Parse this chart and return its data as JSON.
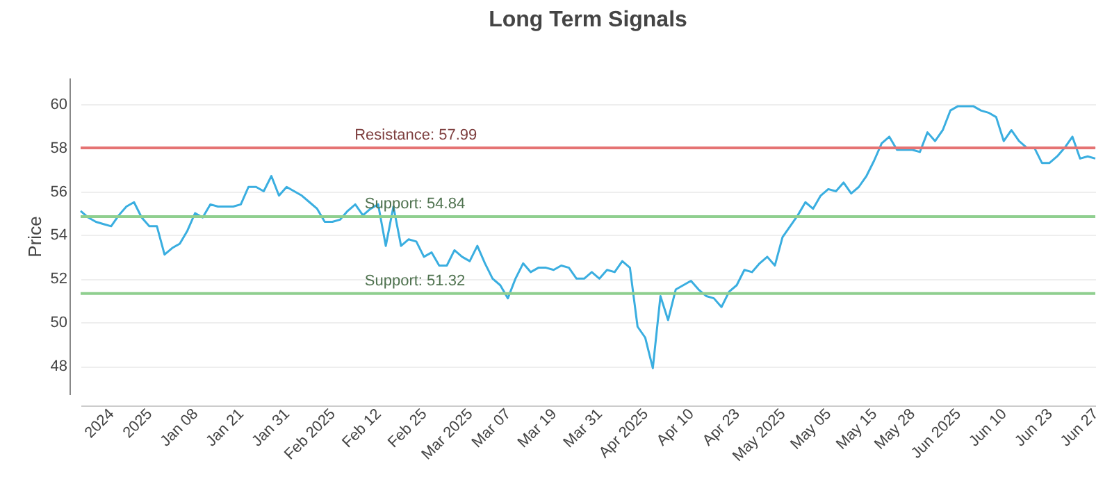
{
  "chart_data": {
    "type": "line",
    "title": "Long Term Signals",
    "ylabel": "Price",
    "categories": [
      null,
      null,
      null,
      null,
      "2024",
      null,
      null,
      null,
      null,
      "2025",
      null,
      null,
      null,
      null,
      null,
      "Jan 08",
      null,
      null,
      null,
      null,
      null,
      "Jan 21",
      null,
      null,
      null,
      null,
      null,
      "Jan 31",
      null,
      null,
      null,
      null,
      null,
      "Feb 2025",
      null,
      null,
      null,
      null,
      null,
      "Feb 12",
      null,
      null,
      null,
      null,
      null,
      "Feb 25",
      null,
      null,
      null,
      null,
      null,
      "Mar 2025",
      null,
      null,
      null,
      null,
      "Mar 07",
      null,
      null,
      null,
      null,
      null,
      "Mar 19",
      null,
      null,
      null,
      null,
      null,
      "Mar 31",
      null,
      null,
      null,
      null,
      null,
      "Apr 2025",
      null,
      null,
      null,
      null,
      null,
      "Apr 10",
      null,
      null,
      null,
      null,
      null,
      "Apr 23",
      null,
      null,
      null,
      null,
      null,
      "May 2025",
      null,
      null,
      null,
      null,
      null,
      "May 05",
      null,
      null,
      null,
      null,
      null,
      "May 15",
      null,
      null,
      null,
      null,
      "May 28",
      null,
      null,
      null,
      null,
      null,
      "Jun 2025",
      null,
      null,
      null,
      null,
      null,
      "Jun 10",
      null,
      null,
      null,
      null,
      null,
      "Jun 23",
      null,
      null,
      null,
      null,
      null,
      "Jun 27"
    ],
    "series": [
      {
        "color": "#3aaee0",
        "values": [
          55.1,
          54.8,
          54.6,
          54.5,
          54.4,
          54.9,
          55.3,
          55.5,
          54.8,
          54.4,
          54.4,
          53.1,
          53.4,
          53.6,
          54.2,
          55.0,
          54.8,
          55.4,
          55.3,
          55.3,
          55.3,
          55.4,
          56.2,
          56.2,
          56.0,
          56.7,
          55.8,
          56.2,
          56.0,
          55.8,
          55.5,
          55.2,
          54.6,
          54.6,
          54.7,
          55.1,
          55.4,
          54.9,
          55.2,
          55.4,
          53.5,
          55.3,
          53.5,
          53.8,
          53.7,
          53.0,
          53.2,
          52.6,
          52.6,
          53.3,
          53.0,
          52.8,
          53.5,
          52.7,
          52.0,
          51.7,
          51.1,
          52.0,
          52.7,
          52.3,
          52.5,
          52.5,
          52.4,
          52.6,
          52.5,
          52.0,
          52.0,
          52.3,
          52.0,
          52.4,
          52.3,
          52.8,
          52.5,
          49.8,
          49.3,
          47.9,
          51.2,
          50.1,
          51.5,
          51.7,
          51.9,
          51.5,
          51.2,
          51.1,
          50.7,
          51.4,
          51.7,
          52.4,
          52.3,
          52.7,
          53.0,
          52.6,
          53.9,
          54.4,
          54.9,
          55.5,
          55.2,
          55.8,
          56.1,
          56.0,
          56.4,
          55.9,
          56.2,
          56.7,
          57.4,
          58.2,
          58.5,
          57.9,
          57.9,
          57.9,
          57.8,
          58.7,
          58.3,
          58.8,
          59.7,
          59.9,
          59.9,
          59.9,
          59.7,
          59.6,
          59.4,
          58.3,
          58.8,
          58.3,
          58.0,
          58.0,
          57.3,
          57.3,
          57.6,
          58.0,
          58.5,
          57.5,
          57.6,
          57.5
        ]
      }
    ],
    "ylim": [
      46.7,
      61.2
    ],
    "yticks": [
      48,
      50,
      52,
      54,
      56,
      58,
      60
    ],
    "grid": "y",
    "ref_lines": [
      {
        "axis": "y",
        "value": 57.99,
        "label": "Resistance: 57.99",
        "color": "#e57373"
      },
      {
        "axis": "y",
        "value": 54.84,
        "label": "Support: 54.84",
        "color": "#8fcf8f"
      },
      {
        "axis": "y",
        "value": 51.32,
        "label": "Support: 51.32",
        "color": "#8fcf8f"
      }
    ]
  }
}
